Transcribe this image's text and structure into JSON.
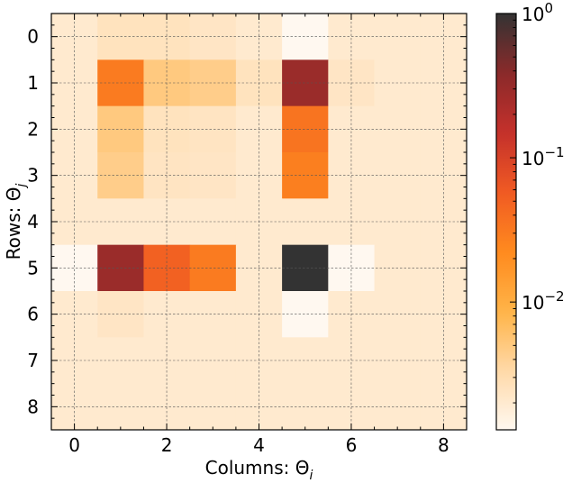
{
  "chart_data": {
    "type": "heatmap",
    "xlabel": "Columns: Θ",
    "xlabel_sub": "i",
    "ylabel": "Rows: Θ",
    "ylabel_sub": "j",
    "x_ticks": [
      "0",
      "2",
      "4",
      "6",
      "8"
    ],
    "x_tick_values": [
      0,
      2,
      4,
      6,
      8
    ],
    "y_ticks": [
      "0",
      "1",
      "2",
      "3",
      "4",
      "5",
      "6",
      "7",
      "8"
    ],
    "y_tick_values": [
      0,
      1,
      2,
      3,
      4,
      5,
      6,
      7,
      8
    ],
    "xlim": [
      -0.5,
      8.5
    ],
    "ylim": [
      8.5,
      -0.5
    ],
    "grid": true,
    "colorbar": {
      "scale": "log",
      "vmin": 0.0013,
      "vmax": 1.0,
      "ticks": [
        {
          "value": 1.0,
          "mantissa": "10",
          "exponent": "0"
        },
        {
          "value": 0.1,
          "mantissa": "10",
          "exponent": "−1"
        },
        {
          "value": 0.01,
          "mantissa": "10",
          "exponent": "−2"
        }
      ],
      "colors": [
        "#fff8f0",
        "#ffd9a8",
        "#ffb347",
        "#ff8a1e",
        "#f05a23",
        "#c4302b",
        "#8a2a2a",
        "#333333"
      ]
    },
    "values": [
      [
        0.002,
        0.0025,
        0.0025,
        0.0023,
        0.002,
        0.0013,
        0.002,
        0.002,
        0.002
      ],
      [
        0.002,
        0.03,
        0.005,
        0.0045,
        0.0025,
        0.3,
        0.0023,
        0.002,
        0.002
      ],
      [
        0.002,
        0.005,
        0.0025,
        0.0024,
        0.002,
        0.035,
        0.002,
        0.002,
        0.002
      ],
      [
        0.002,
        0.0045,
        0.0024,
        0.0023,
        0.002,
        0.028,
        0.002,
        0.002,
        0.002
      ],
      [
        0.002,
        0.002,
        0.002,
        0.002,
        0.002,
        0.002,
        0.002,
        0.002,
        0.002
      ],
      [
        0.0013,
        0.3,
        0.05,
        0.03,
        0.002,
        1.0,
        0.0013,
        0.002,
        0.002
      ],
      [
        0.002,
        0.0023,
        0.002,
        0.002,
        0.002,
        0.0013,
        0.002,
        0.002,
        0.002
      ],
      [
        0.002,
        0.002,
        0.002,
        0.002,
        0.002,
        0.002,
        0.002,
        0.002,
        0.002
      ],
      [
        0.002,
        0.002,
        0.002,
        0.002,
        0.002,
        0.002,
        0.002,
        0.002,
        0.002
      ]
    ]
  }
}
